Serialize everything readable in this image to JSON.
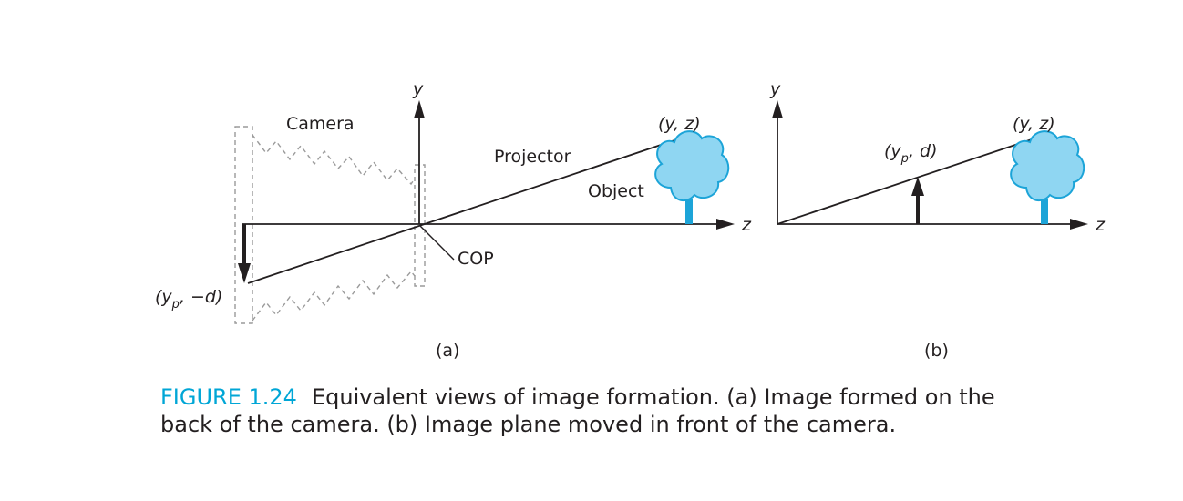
{
  "panel_a": {
    "y_axis": "y",
    "z_axis": "z",
    "camera": "Camera",
    "projector": "Projector",
    "object": "Object",
    "cop": "COP",
    "point_yz": "(y, z)",
    "point_image": {
      "open": "(y",
      "sub": "p",
      "rest": ", −d)"
    },
    "panel_label": "(a)"
  },
  "panel_b": {
    "y_axis": "y",
    "z_axis": "z",
    "point_yz": "(y, z)",
    "point_image": {
      "open": "(y",
      "sub": "p",
      "rest": ", d)"
    },
    "panel_label": "(b)"
  },
  "caption": {
    "number": "FIGURE 1.24",
    "text": "Equivalent views of image formation. (a) Image formed on the back of the camera. (b) Image plane moved in front of the camera."
  },
  "colors": {
    "accent": "#00a6d6",
    "cloud_fill": "#8fd6f2",
    "cloud_stroke": "#1ca4d8",
    "line": "#231f20",
    "dashed": "#9a9a9a"
  }
}
